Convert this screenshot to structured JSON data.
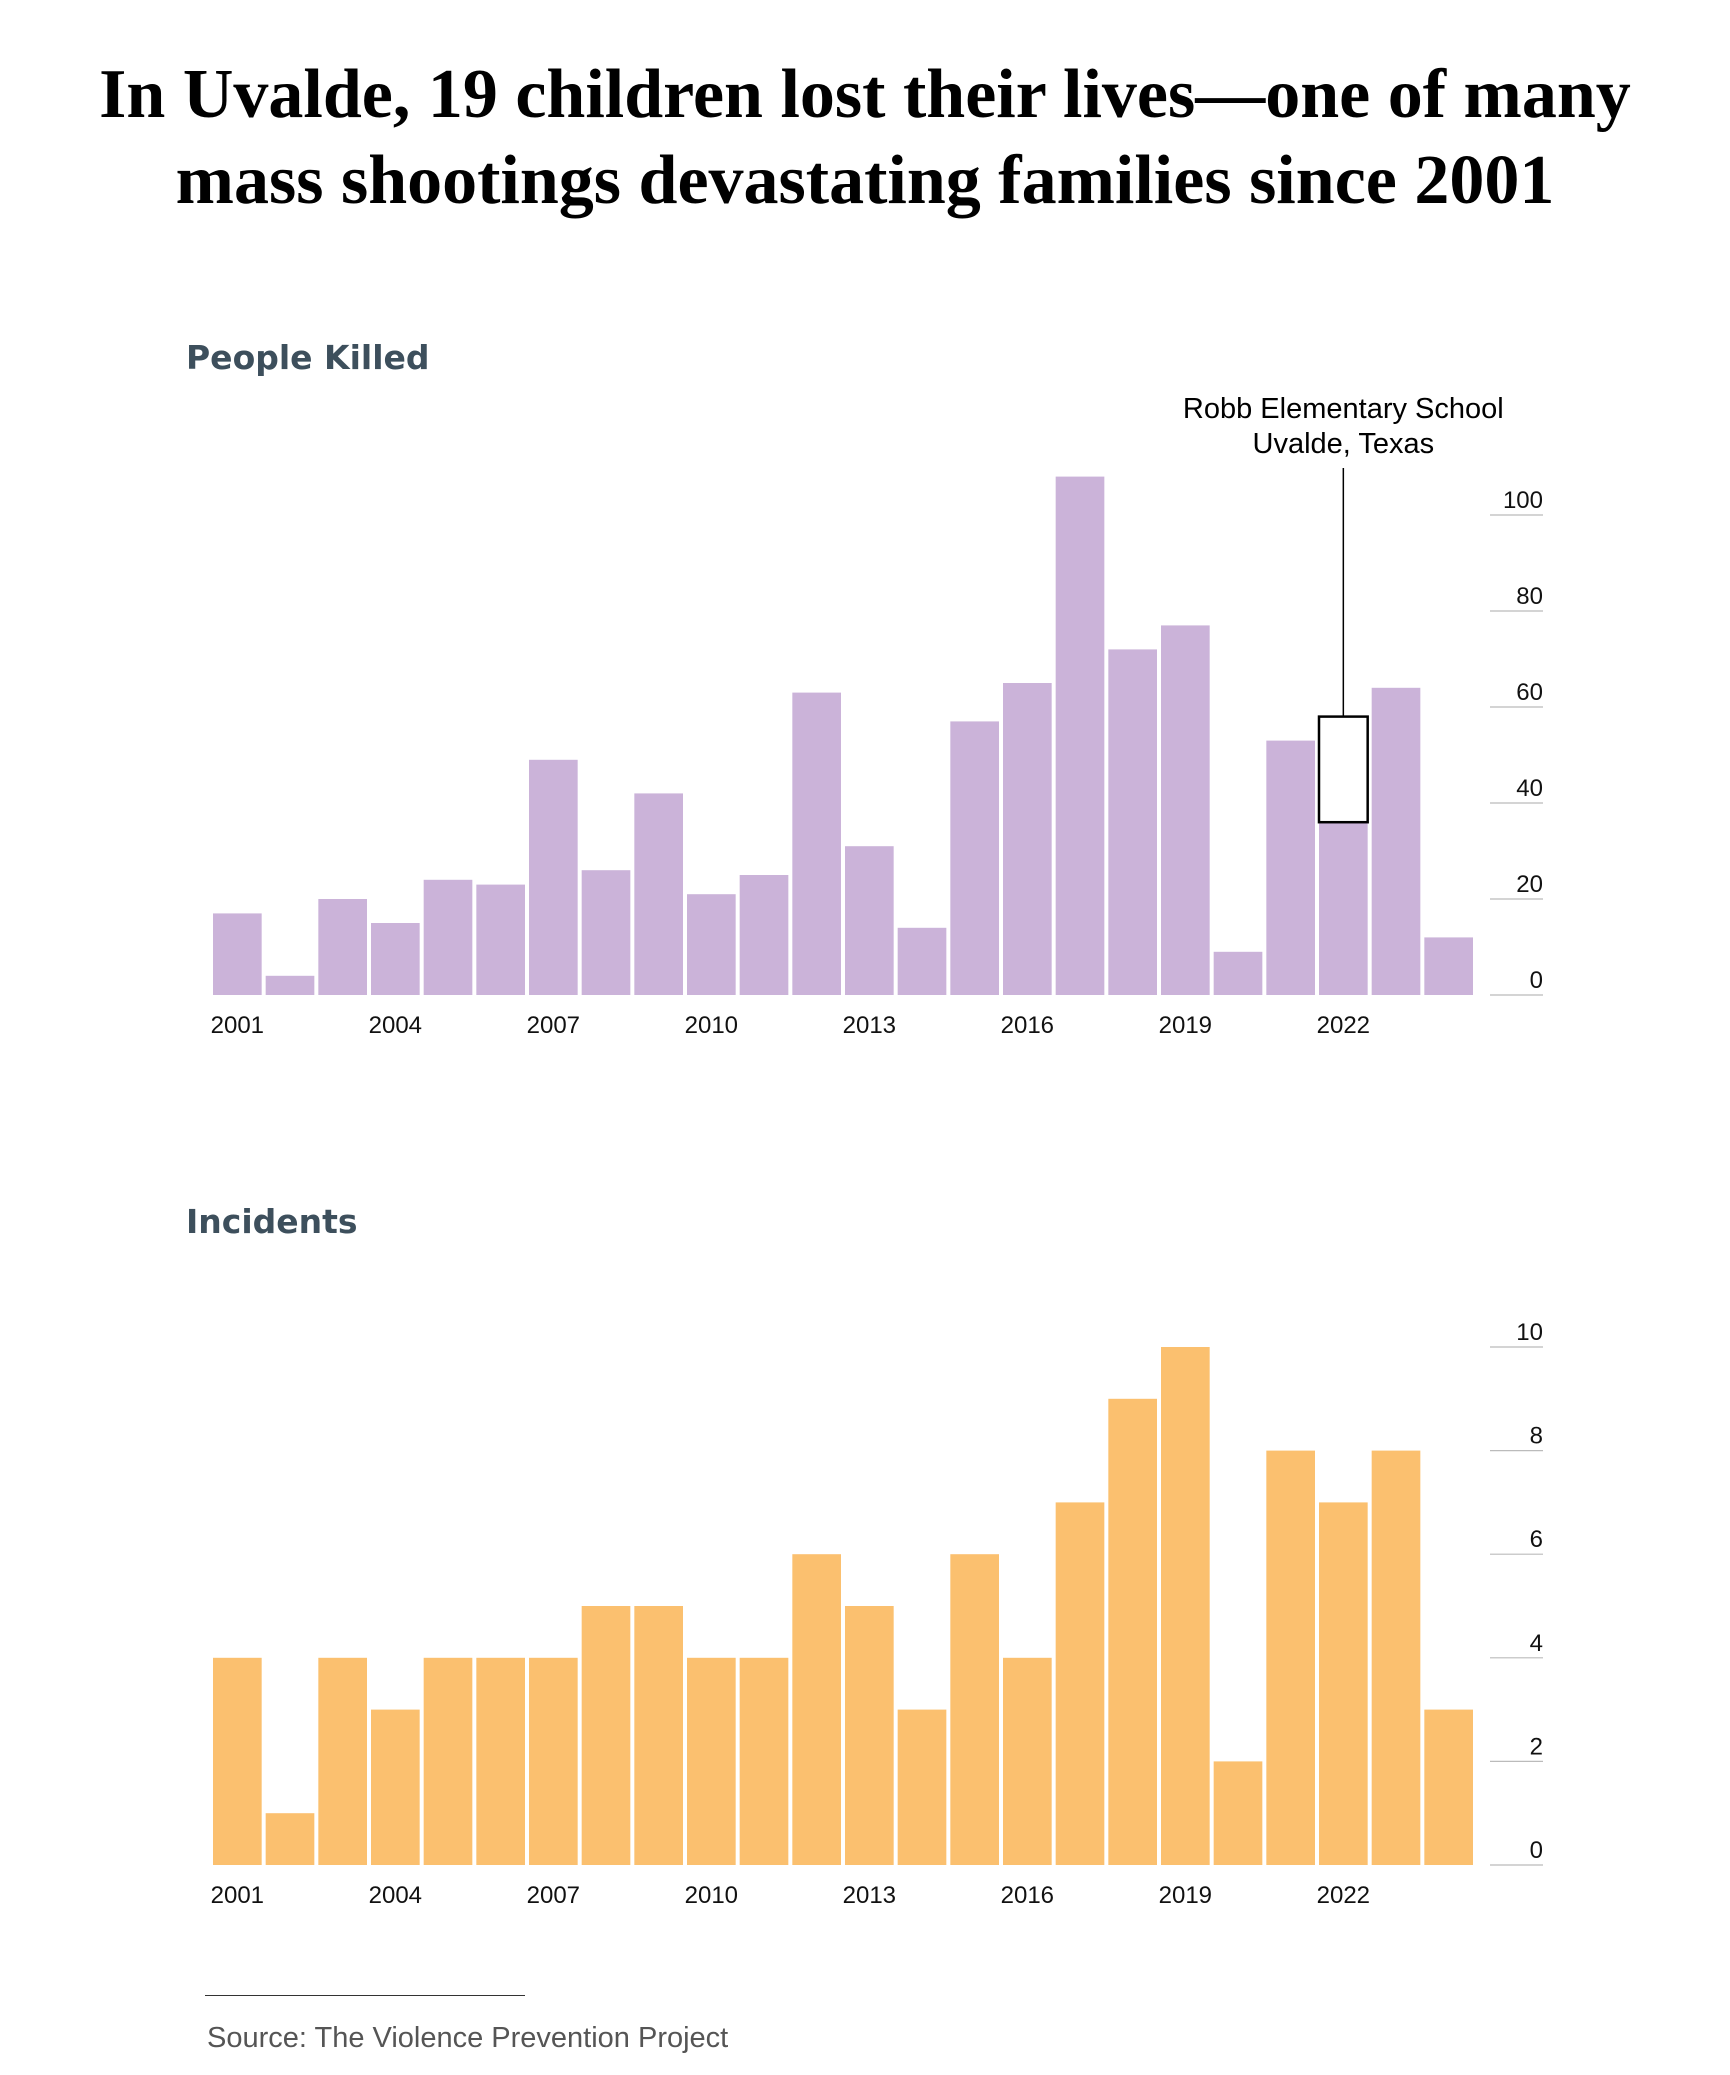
{
  "headline": {
    "line1": "In Uvalde, 19 children lost their lives—one of many",
    "line2": "mass shootings devastating families since 2001"
  },
  "source": "Source: The Violence Prevention Project",
  "chart_data": [
    {
      "type": "bar",
      "title": "People Killed",
      "x": [
        2001,
        2002,
        2003,
        2004,
        2005,
        2006,
        2007,
        2008,
        2009,
        2010,
        2011,
        2012,
        2013,
        2014,
        2015,
        2016,
        2017,
        2018,
        2019,
        2020,
        2021,
        2022,
        2023,
        2024
      ],
      "values": [
        17,
        4,
        20,
        15,
        24,
        23,
        49,
        26,
        42,
        21,
        25,
        63,
        31,
        14,
        57,
        65,
        108,
        72,
        77,
        9,
        53,
        36,
        64,
        12
      ],
      "x_tick_labels": [
        "2001",
        "2004",
        "2007",
        "2010",
        "2013",
        "2016",
        "2019",
        "2022"
      ],
      "y_ticks": [
        0,
        20,
        40,
        60,
        80,
        100
      ],
      "ylim": [
        0,
        110
      ],
      "axis_position": "right",
      "grid": false,
      "bar_color": "#cbb3d9",
      "highlight": {
        "x": 2022,
        "low": 36,
        "high": 58,
        "label_line1": "Robb Elementary School",
        "label_line2": "Uvalde, Texas"
      }
    },
    {
      "type": "bar",
      "title": "Incidents",
      "x": [
        2001,
        2002,
        2003,
        2004,
        2005,
        2006,
        2007,
        2008,
        2009,
        2010,
        2011,
        2012,
        2013,
        2014,
        2015,
        2016,
        2017,
        2018,
        2019,
        2020,
        2021,
        2022,
        2023,
        2024
      ],
      "values": [
        4,
        1,
        4,
        3,
        4,
        4,
        4,
        5,
        5,
        4,
        4,
        6,
        5,
        3,
        6,
        4,
        7,
        9,
        10,
        2,
        8,
        7,
        8,
        3
      ],
      "x_tick_labels": [
        "2001",
        "2004",
        "2007",
        "2010",
        "2013",
        "2016",
        "2019",
        "2022"
      ],
      "y_ticks": [
        0,
        2,
        4,
        6,
        8,
        10
      ],
      "ylim": [
        0,
        10
      ],
      "axis_position": "right",
      "grid": false,
      "bar_color": "#fbc06f"
    }
  ]
}
